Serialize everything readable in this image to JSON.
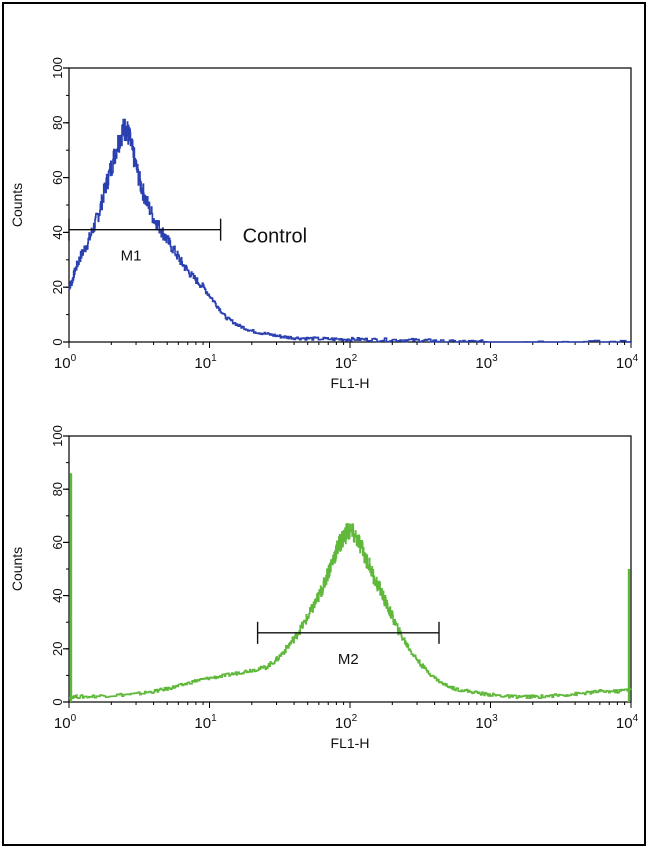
{
  "chart_data": [
    {
      "type": "line",
      "panel": "top",
      "series_color": "#2a3fb0",
      "xlabel": "FL1-H",
      "ylabel": "Counts",
      "x_scale": "log",
      "xlim": [
        1,
        10000
      ],
      "ylim": [
        0,
        100
      ],
      "x_ticks": [
        {
          "base": "10",
          "exp": "0"
        },
        {
          "base": "10",
          "exp": "1"
        },
        {
          "base": "10",
          "exp": "2"
        },
        {
          "base": "10",
          "exp": "3"
        },
        {
          "base": "10",
          "exp": "4"
        }
      ],
      "y_ticks": [
        "0",
        "20",
        "40",
        "60",
        "80",
        "100"
      ],
      "annotation": "Control",
      "marker": {
        "label": "M1",
        "x_start": 1,
        "x_end": 12,
        "y": 41
      },
      "series": [
        {
          "x": [
            1,
            1.05,
            1.1,
            1.2,
            1.35,
            1.5,
            1.65,
            1.8,
            2.0,
            2.2,
            2.4,
            2.55,
            2.7,
            2.9,
            3.2,
            3.5,
            4.0,
            4.5,
            5.0,
            5.8,
            6.5,
            7.5,
            9.0,
            11,
            13,
            16,
            20,
            25,
            32,
            40,
            55,
            80,
            110,
            160,
            250,
            350,
            450,
            700,
            1000,
            3000,
            10000
          ],
          "y": [
            20,
            22,
            26,
            31,
            36,
            42,
            48,
            56,
            64,
            72,
            77,
            78,
            74,
            67,
            58,
            52,
            45,
            41,
            37,
            32,
            28,
            24,
            20,
            14,
            9,
            6,
            4,
            3,
            2,
            1.5,
            1.2,
            1,
            1,
            0.8,
            0.7,
            0.6,
            0.2,
            0.1,
            0.1,
            0,
            0
          ]
        }
      ]
    },
    {
      "type": "line",
      "panel": "bottom",
      "series_color": "#5fb83a",
      "xlabel": "FL1-H",
      "ylabel": "Counts",
      "x_scale": "log",
      "xlim": [
        1,
        10000
      ],
      "ylim": [
        0,
        100
      ],
      "x_ticks": [
        {
          "base": "10",
          "exp": "0"
        },
        {
          "base": "10",
          "exp": "1"
        },
        {
          "base": "10",
          "exp": "2"
        },
        {
          "base": "10",
          "exp": "3"
        },
        {
          "base": "10",
          "exp": "4"
        }
      ],
      "y_ticks": [
        "0",
        "20",
        "40",
        "60",
        "80",
        "100"
      ],
      "marker": {
        "label": "M2",
        "x_start": 22,
        "x_end": 430,
        "y": 26
      },
      "edge_spikes": [
        {
          "x": 1,
          "y": 86
        },
        {
          "x": 10000,
          "y": 50
        }
      ],
      "series": [
        {
          "x": [
            1,
            1.3,
            2,
            3,
            4,
            5,
            6,
            8,
            10,
            13,
            16,
            20,
            25,
            30,
            35,
            40,
            45,
            50,
            55,
            60,
            65,
            70,
            75,
            80,
            85,
            90,
            95,
            100,
            110,
            120,
            135,
            150,
            165,
            180,
            200,
            220,
            250,
            280,
            320,
            380,
            450,
            550,
            700,
            900,
            1100,
            1400,
            1800,
            2200,
            3000,
            4000,
            5000,
            6000,
            8000,
            10000
          ],
          "y": [
            2,
            2,
            2.5,
            3,
            4,
            5,
            6,
            8,
            9,
            10,
            11,
            12,
            13,
            16,
            20,
            24,
            28,
            32,
            36,
            40,
            44,
            49,
            53,
            57,
            60,
            62,
            64,
            64,
            62,
            58,
            52,
            46,
            42,
            37,
            32,
            27,
            22,
            18,
            14,
            10,
            7,
            5,
            4,
            3,
            2.5,
            2,
            2,
            2,
            2.5,
            3,
            3.5,
            4,
            4,
            5
          ]
        }
      ]
    }
  ]
}
